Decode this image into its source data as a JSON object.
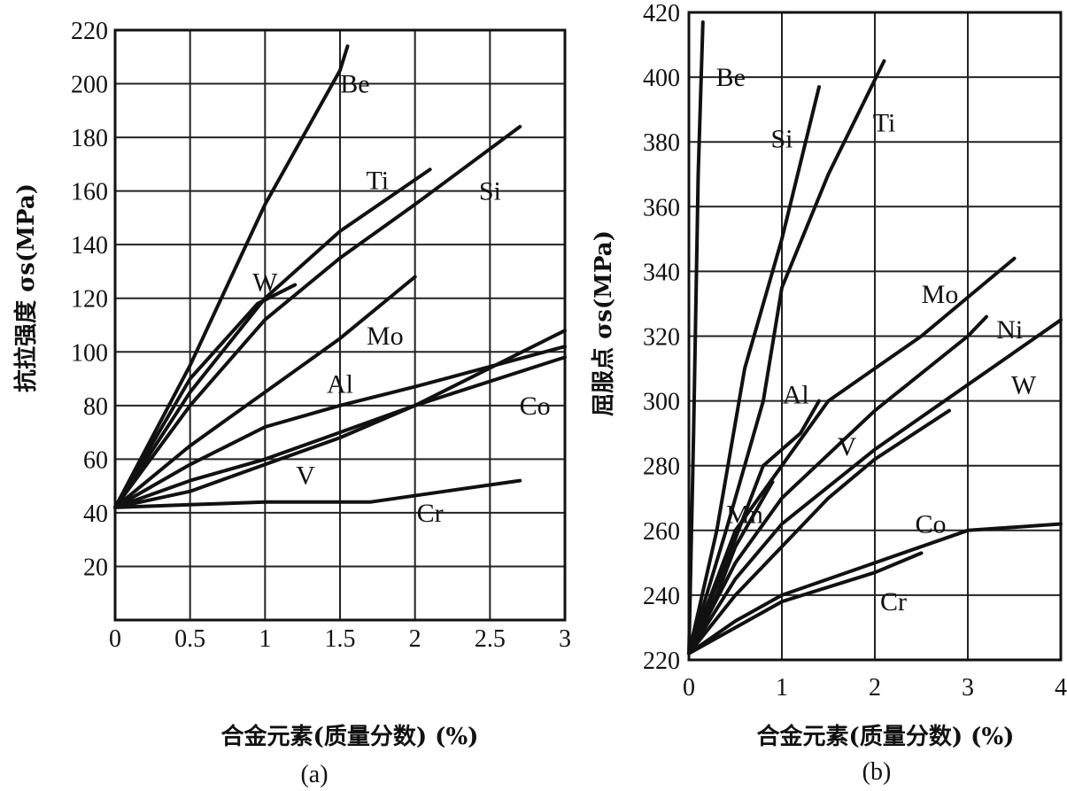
{
  "chart_data": [
    {
      "type": "line",
      "caption": "(a)",
      "xlabel": "合金元素(质量分数) (%)",
      "ylabel": "抗拉强度 σs(MPa)",
      "xlim": [
        0,
        3
      ],
      "ylim": [
        0,
        220
      ],
      "x_ticks": [
        0,
        0.5,
        1,
        1.5,
        2,
        2.5,
        3
      ],
      "x_tick_labels": [
        "0",
        "0.5",
        "1",
        "1.5",
        "2",
        "2.5",
        "3"
      ],
      "y_ticks": [
        20,
        40,
        60,
        80,
        100,
        120,
        140,
        160,
        180,
        200,
        220
      ],
      "y_tick_labels": [
        "20",
        "40",
        "60",
        "80",
        "100",
        "120",
        "140",
        "160",
        "180",
        "200",
        "220"
      ],
      "grid": true,
      "series": [
        {
          "name": "Be",
          "x": [
            0,
            0.5,
            1.0,
            1.5,
            1.55
          ],
          "y": [
            42,
            95,
            155,
            205,
            214
          ],
          "label_at": [
            1.6,
            200
          ]
        },
        {
          "name": "Ti",
          "x": [
            0,
            0.5,
            1.0,
            1.5,
            2.1
          ],
          "y": [
            42,
            85,
            120,
            145,
            168
          ],
          "label_at": [
            1.75,
            164
          ]
        },
        {
          "name": "Si",
          "x": [
            0,
            0.5,
            1.0,
            1.5,
            2.0,
            2.7
          ],
          "y": [
            42,
            80,
            112,
            135,
            155,
            184
          ],
          "label_at": [
            2.5,
            160
          ]
        },
        {
          "name": "W",
          "x": [
            0,
            0.5,
            0.95,
            1.2
          ],
          "y": [
            42,
            90,
            118,
            125
          ],
          "label_at": [
            1.0,
            126
          ]
        },
        {
          "name": "Mo",
          "x": [
            0,
            0.5,
            1.0,
            1.5,
            2.0
          ],
          "y": [
            42,
            65,
            85,
            105,
            128
          ],
          "label_at": [
            1.8,
            106
          ]
        },
        {
          "name": "Al",
          "x": [
            0,
            0.5,
            1.0,
            1.5,
            2.0,
            3.0
          ],
          "y": [
            42,
            58,
            72,
            80,
            87,
            102
          ],
          "label_at": [
            1.5,
            88
          ]
        },
        {
          "name": "Co",
          "x": [
            0,
            0.5,
            1.0,
            1.5,
            2.0,
            3.0
          ],
          "y": [
            42,
            52,
            60,
            70,
            80,
            98
          ],
          "label_at": [
            2.8,
            80
          ]
        },
        {
          "name": "V",
          "x": [
            0,
            0.5,
            1.0,
            1.5,
            2.0,
            3.0
          ],
          "y": [
            42,
            48,
            58,
            68,
            80,
            108
          ],
          "label_at": [
            1.27,
            54
          ]
        },
        {
          "name": "Cr",
          "x": [
            0,
            0.5,
            1.0,
            1.7,
            2.2,
            2.7
          ],
          "y": [
            42,
            43,
            44,
            44,
            48,
            52
          ],
          "label_at": [
            2.1,
            40
          ]
        }
      ]
    },
    {
      "type": "line",
      "caption": "(b)",
      "xlabel": "合金元素(质量分数) (%)",
      "ylabel": "屈服点 σs(MPa)",
      "xlim": [
        0,
        4
      ],
      "ylim": [
        220,
        420
      ],
      "x_ticks": [
        0,
        1,
        2,
        3,
        4
      ],
      "x_tick_labels": [
        "0",
        "1",
        "2",
        "3",
        "4"
      ],
      "y_ticks": [
        220,
        240,
        260,
        280,
        300,
        320,
        340,
        360,
        380,
        400,
        420
      ],
      "y_tick_labels": [
        "220",
        "240",
        "260",
        "280",
        "300",
        "320",
        "340",
        "360",
        "380",
        "400",
        "420"
      ],
      "grid": true,
      "series": [
        {
          "name": "Be",
          "x": [
            0,
            0.05,
            0.1,
            0.15
          ],
          "y": [
            222,
            290,
            370,
            417
          ],
          "label_at": [
            0.45,
            400
          ]
        },
        {
          "name": "Si",
          "x": [
            0,
            0.3,
            0.6,
            1.0,
            1.4
          ],
          "y": [
            222,
            260,
            310,
            350,
            397
          ],
          "label_at": [
            1.0,
            381
          ]
        },
        {
          "name": "Ti",
          "x": [
            0,
            0.4,
            0.8,
            1.0,
            1.5,
            2.1
          ],
          "y": [
            222,
            260,
            300,
            335,
            370,
            405
          ],
          "label_at": [
            2.1,
            386
          ]
        },
        {
          "name": "Mo",
          "x": [
            0,
            0.5,
            1.0,
            1.5,
            2.5,
            3.5
          ],
          "y": [
            222,
            260,
            280,
            300,
            320,
            344
          ],
          "label_at": [
            2.7,
            333
          ]
        },
        {
          "name": "Ni",
          "x": [
            0,
            0.5,
            1.0,
            2.0,
            3.0,
            3.2
          ],
          "y": [
            222,
            250,
            270,
            297,
            320,
            326
          ],
          "label_at": [
            3.45,
            322
          ]
        },
        {
          "name": "W",
          "x": [
            0,
            0.5,
            1.0,
            2.0,
            3.0,
            4.0
          ],
          "y": [
            222,
            245,
            262,
            285,
            305,
            325
          ],
          "label_at": [
            3.6,
            305
          ]
        },
        {
          "name": "Al",
          "x": [
            0,
            0.4,
            0.8,
            1.2,
            1.4
          ],
          "y": [
            222,
            250,
            280,
            290,
            300
          ],
          "label_at": [
            1.15,
            302
          ]
        },
        {
          "name": "Mn",
          "x": [
            0,
            0.3,
            0.5,
            0.7,
            0.9
          ],
          "y": [
            222,
            240,
            255,
            265,
            275
          ],
          "label_at": [
            0.6,
            265
          ]
        },
        {
          "name": "V",
          "x": [
            0,
            0.5,
            1.0,
            1.5,
            2.0,
            2.8
          ],
          "y": [
            222,
            240,
            255,
            270,
            282,
            297
          ],
          "label_at": [
            1.7,
            286
          ]
        },
        {
          "name": "Co",
          "x": [
            0,
            0.5,
            1.0,
            2.0,
            3.0,
            4.0
          ],
          "y": [
            222,
            232,
            240,
            250,
            260,
            262
          ],
          "label_at": [
            2.6,
            262
          ]
        },
        {
          "name": "Cr",
          "x": [
            0,
            0.5,
            1.0,
            2.0,
            2.5
          ],
          "y": [
            222,
            230,
            238,
            247,
            253
          ],
          "label_at": [
            2.2,
            238
          ]
        }
      ]
    }
  ]
}
